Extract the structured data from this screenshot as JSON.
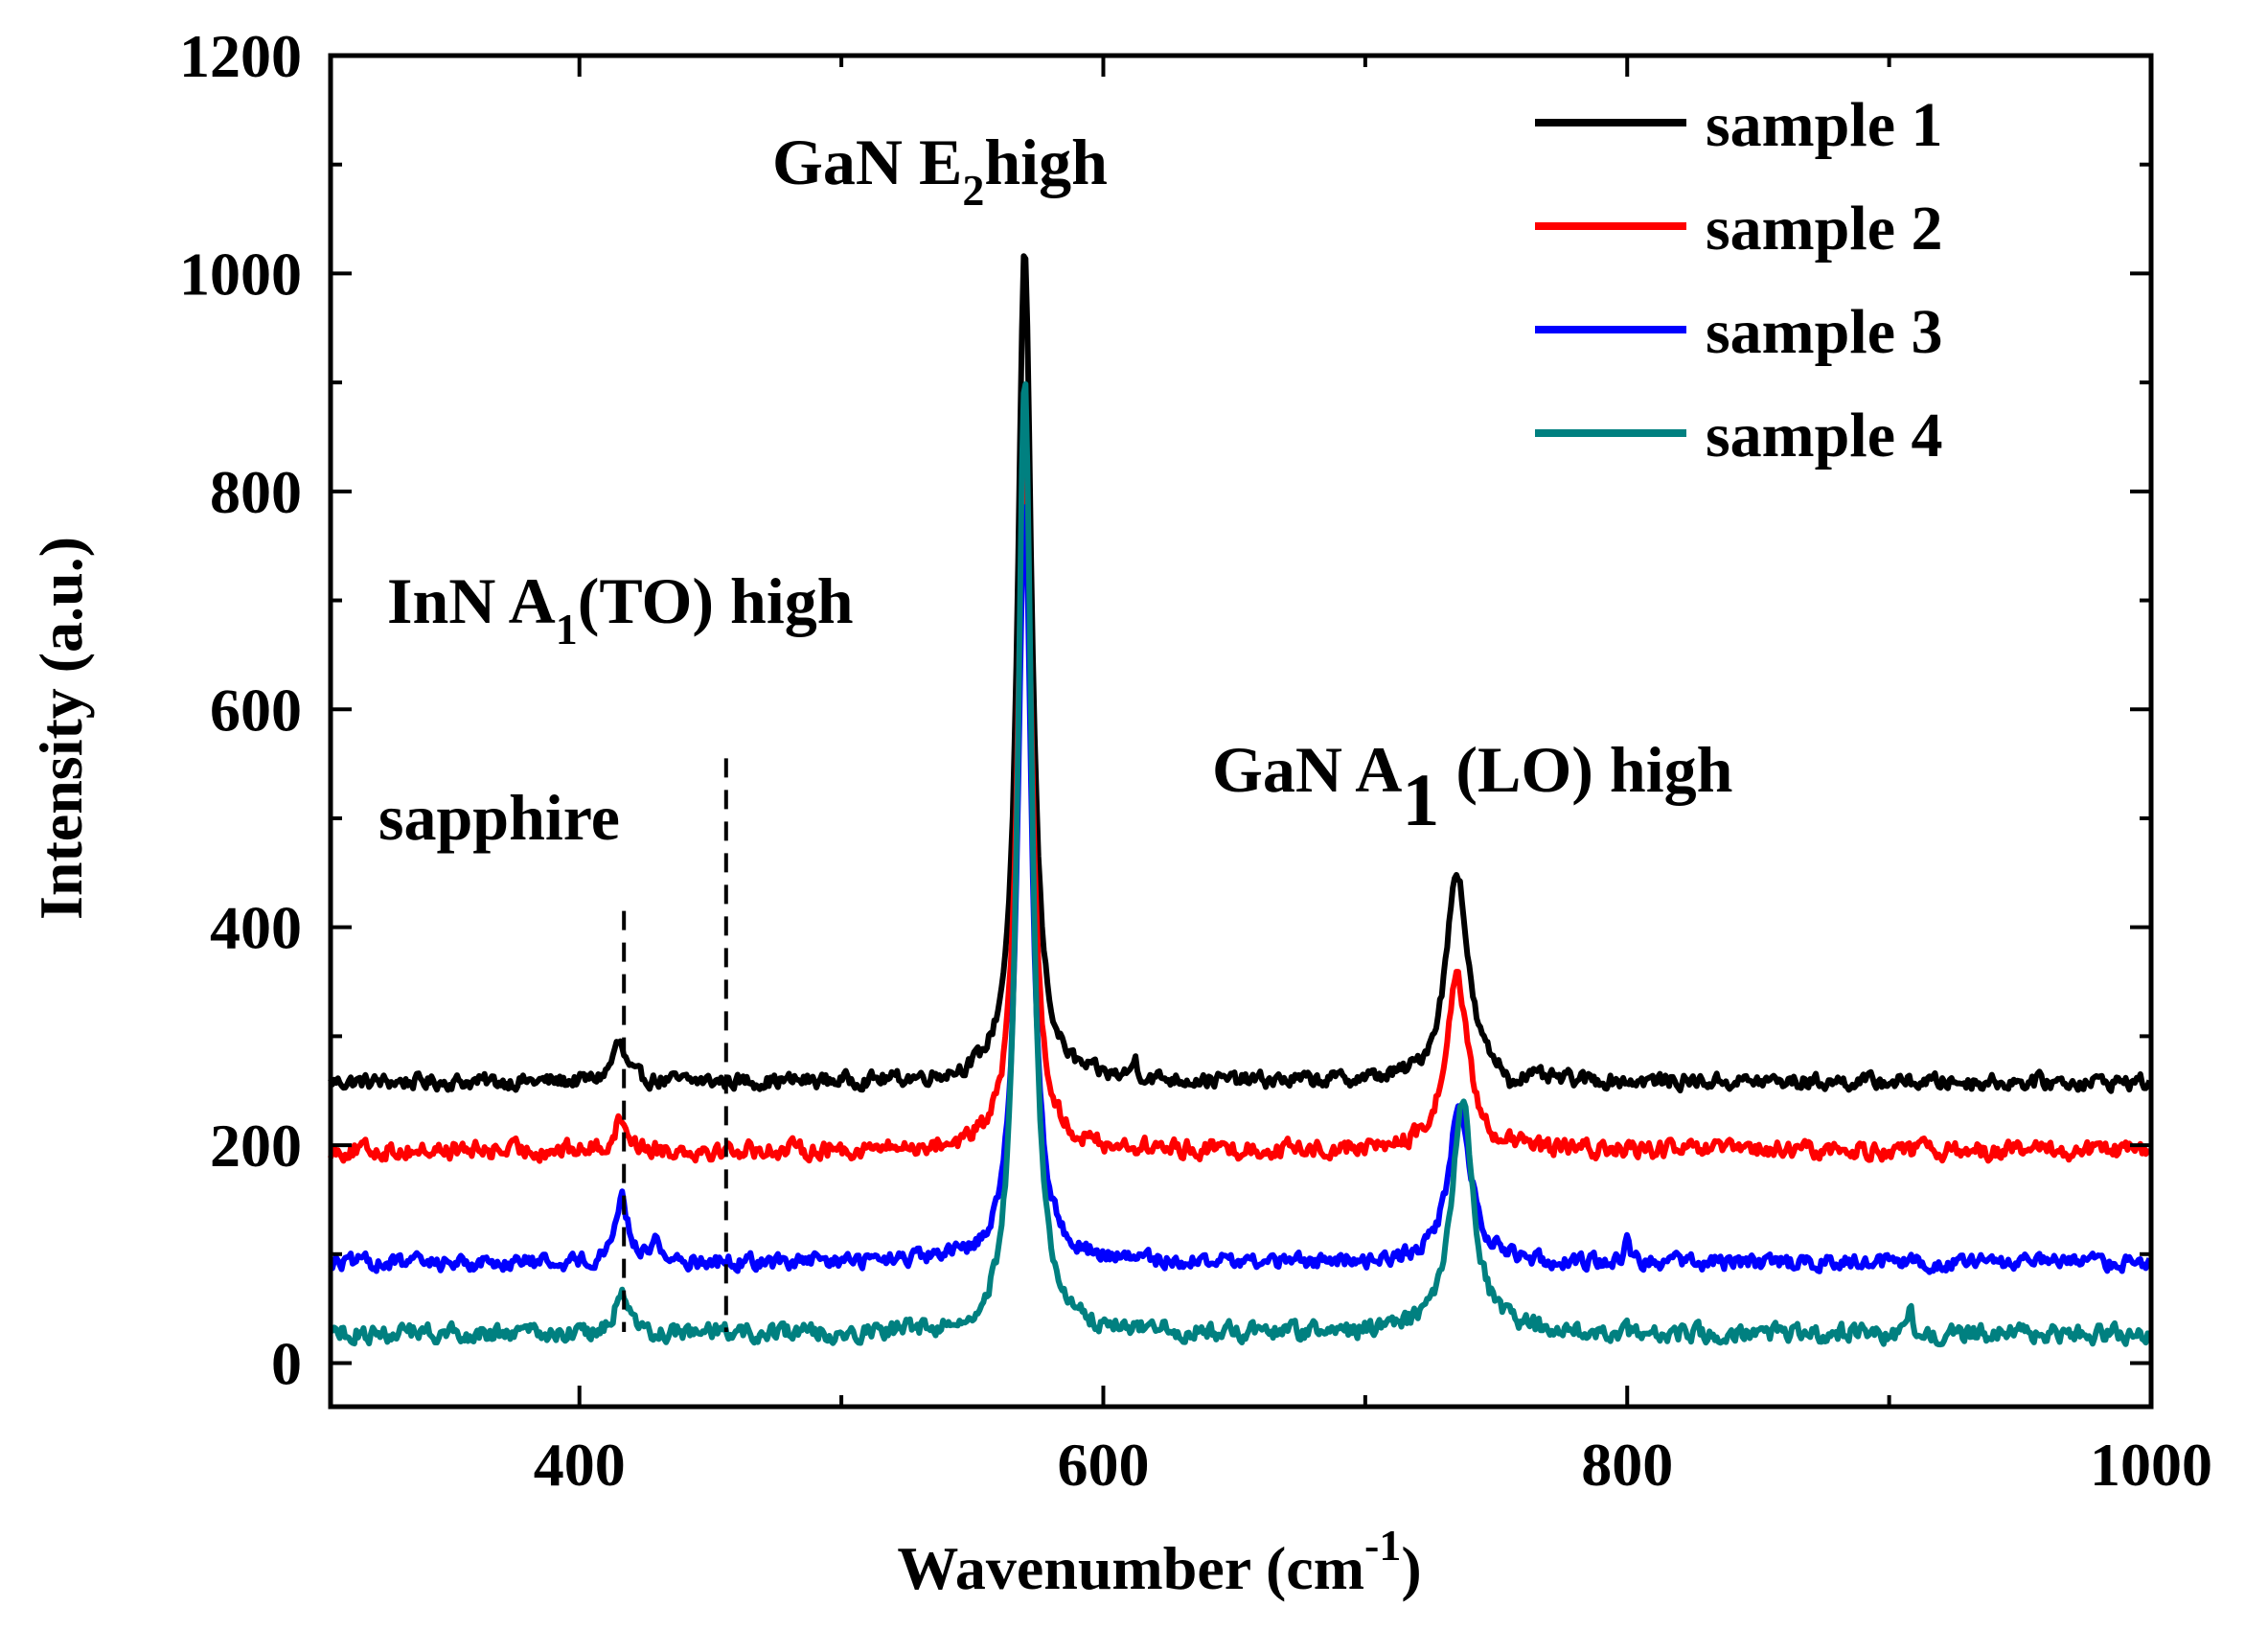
{
  "chart_data": {
    "type": "line",
    "xlabel_main": "Wavenumber (cm",
    "xlabel_sup": "-1",
    "xlabel_close": ")",
    "ylabel": "Intensity (a.u.)",
    "xlim": [
      305,
      1000
    ],
    "ylim": [
      -40,
      1200
    ],
    "xticks": [
      400,
      600,
      800,
      1000
    ],
    "yticks": [
      0,
      200,
      400,
      600,
      800,
      1000,
      1200
    ],
    "xtick_labels": [
      "400",
      "600",
      "800",
      "1000"
    ],
    "ytick_labels": [
      "0",
      "200",
      "400",
      "600",
      "800",
      "1000",
      "1200"
    ],
    "legend_position": "top-right",
    "reference_lines": [
      {
        "name": "sapphire",
        "x": 417,
        "y_top": 415
      },
      {
        "name": "InN A1(TO) high",
        "x": 456,
        "y_top": 555
      }
    ],
    "annotations": {
      "gan_e2": {
        "main": "GaN E",
        "sub": "2",
        "tail": "high"
      },
      "inn_a1": {
        "main": "InN A",
        "sub": "1",
        "tail": "(TO) high"
      },
      "gan_a1": {
        "main": "GaN  A",
        "sub": "1",
        "tail": " (LO) high"
      },
      "sapphire": {
        "text": "sapphire"
      }
    },
    "series": [
      {
        "name": "sample 1",
        "color": "#000000",
        "baseline": 258,
        "noise": 6,
        "peaks": [
          [
            415,
            35,
            3
          ],
          [
            570,
            760,
            3.2
          ],
          [
            612,
            18,
            1.2
          ],
          [
            735,
            195,
            5
          ],
          [
            756,
            -12,
            1.5
          ]
        ]
      },
      {
        "name": "sample 2",
        "color": "#ff0000",
        "baseline": 195,
        "noise": 7,
        "peaks": [
          [
            416,
            30,
            3
          ],
          [
            570,
            640,
            3.2
          ],
          [
            735,
            160,
            5
          ]
        ]
      },
      {
        "name": "sample 3",
        "color": "#0000ff",
        "baseline": 92,
        "noise": 6,
        "peaks": [
          [
            416,
            60,
            3
          ],
          [
            429,
            20,
            2
          ],
          [
            570,
            700,
            3.2
          ],
          [
            736,
            145,
            5
          ],
          [
            800,
            25,
            1.2
          ]
        ]
      },
      {
        "name": "sample 4",
        "color": "#008080",
        "baseline": 27,
        "noise": 7,
        "peaks": [
          [
            416,
            40,
            2.5
          ],
          [
            570,
            880,
            3.2
          ],
          [
            737,
            215,
            5
          ],
          [
            908,
            20,
            1
          ]
        ]
      }
    ]
  }
}
